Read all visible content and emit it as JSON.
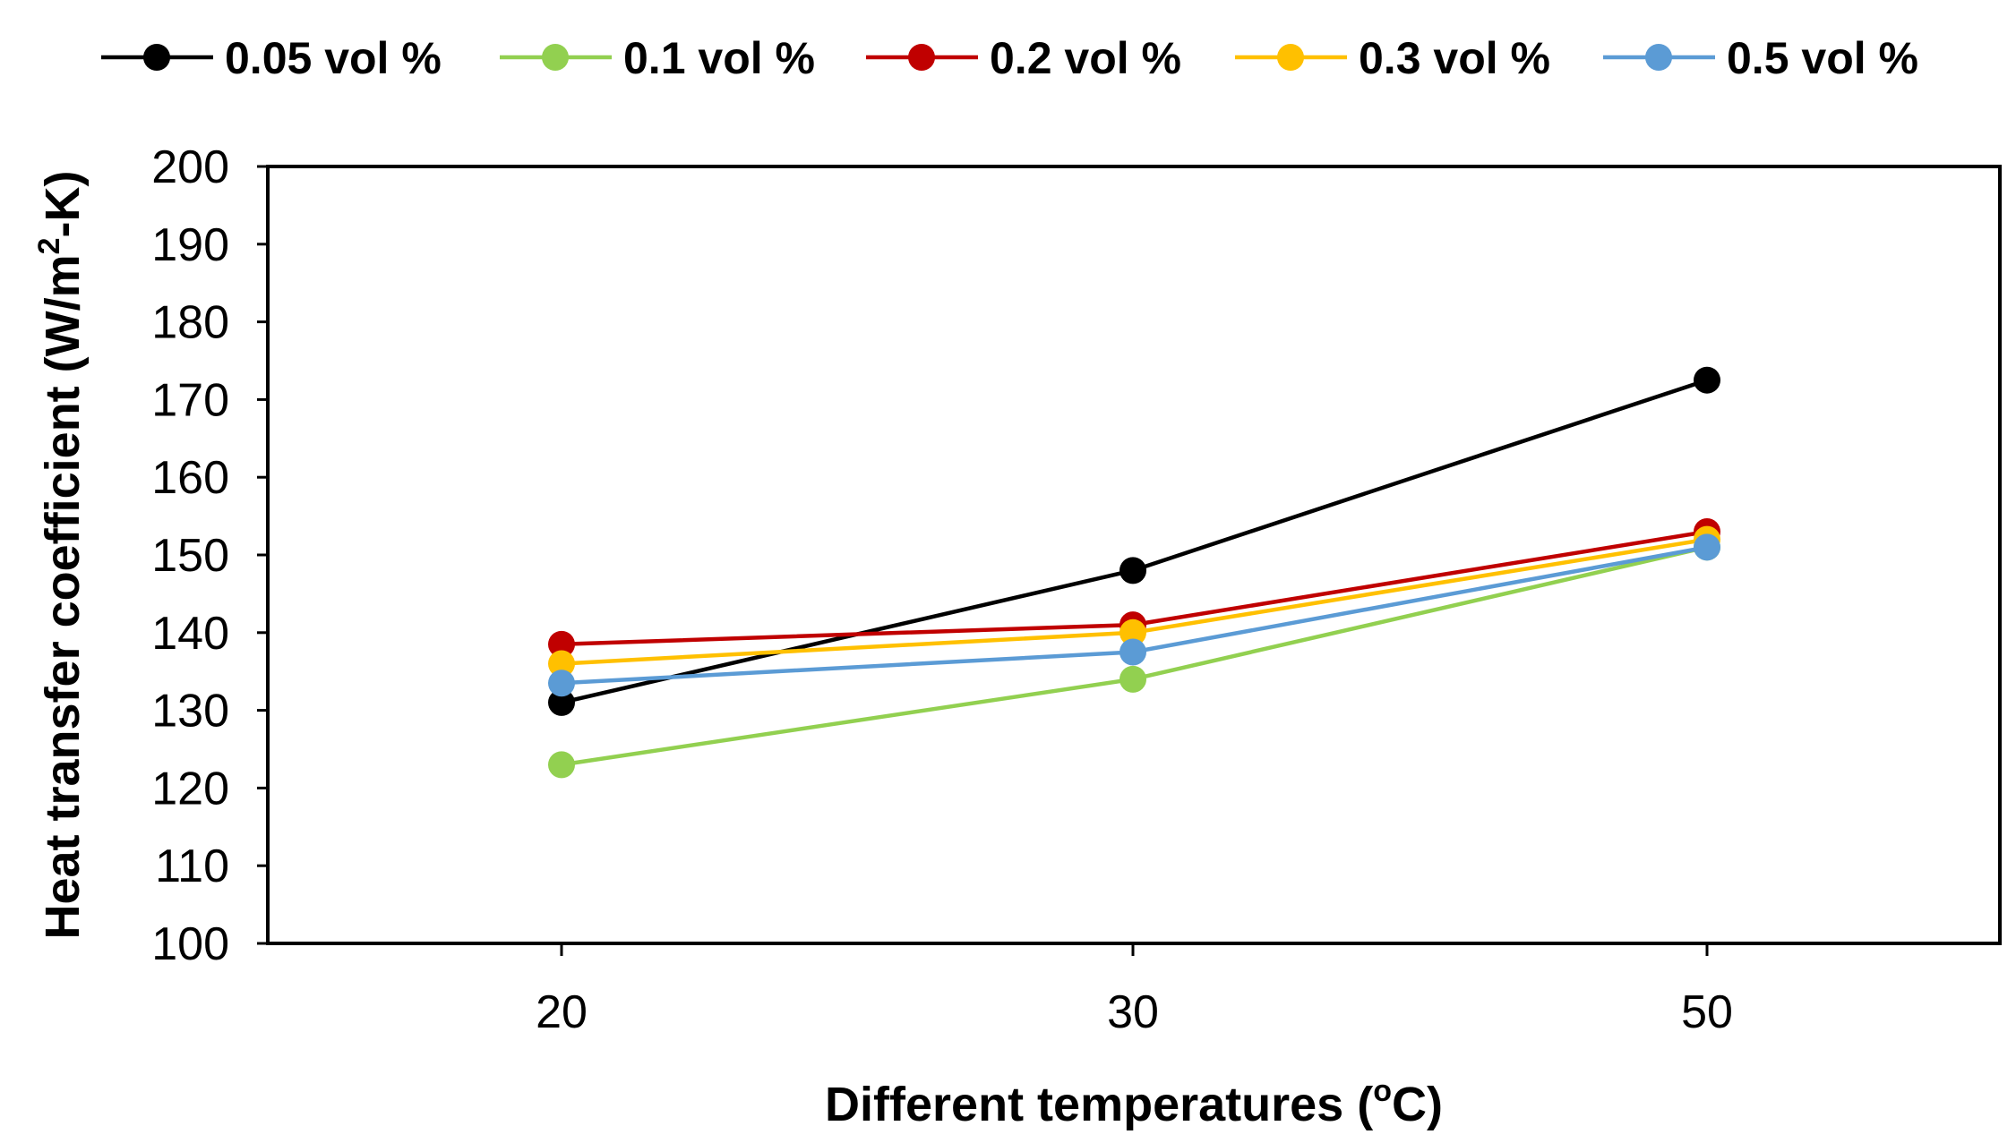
{
  "chart_data": {
    "type": "line",
    "title": "",
    "xlabel": "Different temperatures (",
    "xlabel_sup": "o",
    "xlabel_tail": "C)",
    "ylabel": "Heat transfer coefficient (W/m",
    "ylabel_sup": "2",
    "ylabel_tail": "-K)",
    "categories": [
      "20",
      "30",
      "50"
    ],
    "ylim": [
      100,
      200
    ],
    "y_ticks": [
      100,
      110,
      120,
      130,
      140,
      150,
      160,
      170,
      180,
      190,
      200
    ],
    "grid": false,
    "legend_position": "top",
    "series": [
      {
        "name": "0.05 vol %",
        "color": "#000000",
        "values": [
          131,
          148,
          172.5
        ]
      },
      {
        "name": "0.1 vol %",
        "color": "#92D050",
        "values": [
          123,
          134,
          151
        ]
      },
      {
        "name": "0.2 vol %",
        "color": "#C00000",
        "values": [
          138.5,
          141,
          153
        ]
      },
      {
        "name": "0.3 vol %",
        "color": "#FFC000",
        "values": [
          136,
          140,
          152
        ]
      },
      {
        "name": "0.5 vol %",
        "color": "#5B9BD5",
        "values": [
          133.5,
          137.5,
          151
        ]
      }
    ]
  }
}
